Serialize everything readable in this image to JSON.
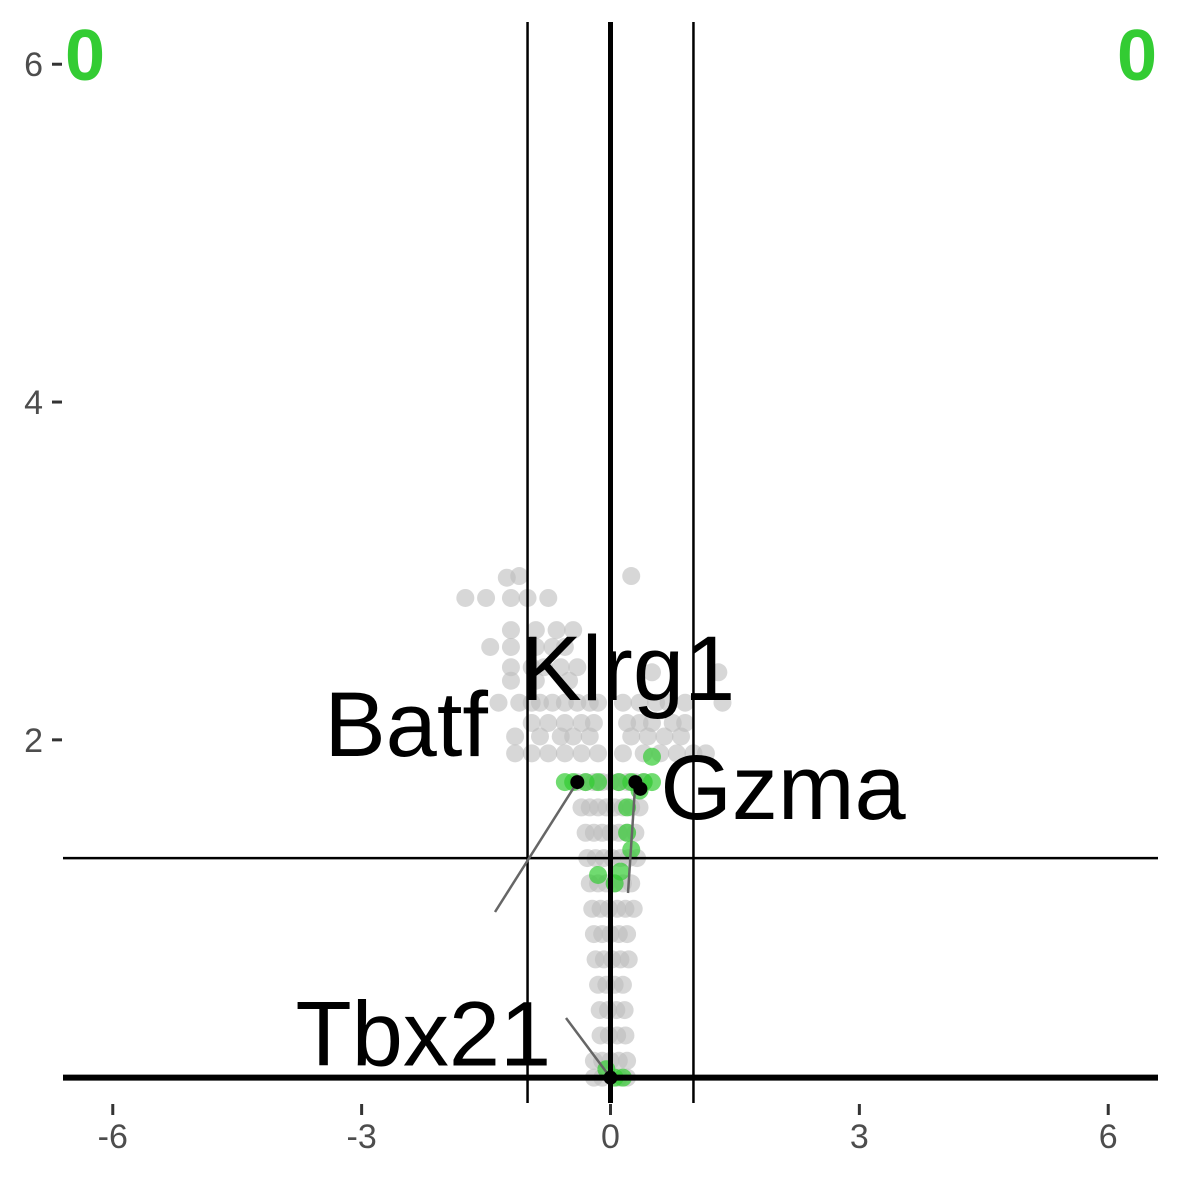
{
  "chart_data": {
    "type": "scatter",
    "title": "",
    "xlabel": "",
    "ylabel": "",
    "xlim": [
      -6.6,
      6.6
    ],
    "ylim": [
      -0.15,
      6.25
    ],
    "x_ticks": [
      -6,
      -3,
      0,
      3,
      6
    ],
    "x_tick_labels": [
      "-6",
      "-3",
      "0",
      "3",
      "6"
    ],
    "y_ticks": [
      2,
      4,
      6
    ],
    "y_tick_labels": [
      "2",
      "4",
      "6"
    ],
    "thresholds": {
      "x": [
        -1,
        1
      ],
      "y": 1.3,
      "x_zero": 0,
      "y_zero": 0
    },
    "grid": false,
    "colors": {
      "background_points": "#bdbdbd",
      "highlight_points": "#33cc33",
      "labeled_points": "#000000",
      "count_labels": "#33cc33",
      "axis_text": "#4d4d4d"
    },
    "corner_counts": {
      "top_left": "0",
      "top_right": "0"
    },
    "background_points": [
      [
        -1.75,
        2.84
      ],
      [
        -1.5,
        2.84
      ],
      [
        -1.2,
        2.84
      ],
      [
        -1.0,
        2.84
      ],
      [
        -0.75,
        2.84
      ],
      [
        -1.25,
        2.96
      ],
      [
        -1.1,
        2.97
      ],
      [
        0.25,
        2.97
      ],
      [
        -1.45,
        2.55
      ],
      [
        -1.2,
        2.55
      ],
      [
        -0.9,
        2.55
      ],
      [
        -0.7,
        2.55
      ],
      [
        -0.55,
        2.55
      ],
      [
        -1.2,
        2.65
      ],
      [
        -0.9,
        2.65
      ],
      [
        -0.65,
        2.65
      ],
      [
        -0.45,
        2.65
      ],
      [
        -1.2,
        2.43
      ],
      [
        -0.95,
        2.43
      ],
      [
        -0.8,
        2.43
      ],
      [
        -0.6,
        2.43
      ],
      [
        -0.4,
        2.43
      ],
      [
        -1.2,
        2.35
      ],
      [
        -0.9,
        2.35
      ],
      [
        -0.5,
        2.35
      ],
      [
        0.5,
        2.4
      ],
      [
        1.3,
        2.4
      ],
      [
        -1.35,
        2.22
      ],
      [
        -1.1,
        2.22
      ],
      [
        -0.95,
        2.22
      ],
      [
        -0.85,
        2.22
      ],
      [
        -0.7,
        2.22
      ],
      [
        -0.55,
        2.22
      ],
      [
        -0.4,
        2.22
      ],
      [
        -0.25,
        2.22
      ],
      [
        -0.15,
        2.22
      ],
      [
        0.15,
        2.22
      ],
      [
        0.35,
        2.22
      ],
      [
        0.55,
        2.22
      ],
      [
        0.7,
        2.22
      ],
      [
        0.9,
        2.22
      ],
      [
        1.35,
        2.22
      ],
      [
        -0.95,
        2.1
      ],
      [
        -0.75,
        2.1
      ],
      [
        -0.55,
        2.1
      ],
      [
        -0.35,
        2.1
      ],
      [
        -0.2,
        2.1
      ],
      [
        0.2,
        2.1
      ],
      [
        0.35,
        2.1
      ],
      [
        0.5,
        2.1
      ],
      [
        0.75,
        2.1
      ],
      [
        0.9,
        2.1
      ],
      [
        -1.15,
        2.02
      ],
      [
        -0.85,
        2.02
      ],
      [
        -0.6,
        2.02
      ],
      [
        -0.45,
        2.02
      ],
      [
        -0.25,
        2.02
      ],
      [
        0.25,
        2.02
      ],
      [
        0.45,
        2.02
      ],
      [
        0.65,
        2.02
      ],
      [
        0.85,
        2.02
      ],
      [
        -1.15,
        1.92
      ],
      [
        -0.95,
        1.92
      ],
      [
        -0.75,
        1.92
      ],
      [
        -0.55,
        1.92
      ],
      [
        -0.35,
        1.92
      ],
      [
        -0.15,
        1.92
      ],
      [
        0.15,
        1.92
      ],
      [
        0.4,
        1.92
      ],
      [
        0.6,
        1.92
      ],
      [
        0.8,
        1.92
      ],
      [
        1.0,
        1.92
      ],
      [
        1.15,
        1.92
      ],
      [
        -0.4,
        1.75
      ],
      [
        -0.3,
        1.75
      ],
      [
        -0.2,
        1.75
      ],
      [
        -0.1,
        1.75
      ],
      [
        0.0,
        1.75
      ],
      [
        0.1,
        1.75
      ],
      [
        0.2,
        1.75
      ],
      [
        0.3,
        1.75
      ],
      [
        0.4,
        1.75
      ],
      [
        -0.35,
        1.6
      ],
      [
        -0.25,
        1.6
      ],
      [
        -0.15,
        1.6
      ],
      [
        -0.05,
        1.6
      ],
      [
        0.05,
        1.6
      ],
      [
        0.15,
        1.6
      ],
      [
        0.25,
        1.6
      ],
      [
        0.35,
        1.6
      ],
      [
        -0.3,
        1.45
      ],
      [
        -0.2,
        1.45
      ],
      [
        -0.1,
        1.45
      ],
      [
        0.0,
        1.45
      ],
      [
        0.1,
        1.45
      ],
      [
        0.2,
        1.45
      ],
      [
        0.3,
        1.45
      ],
      [
        -0.28,
        1.3
      ],
      [
        -0.18,
        1.3
      ],
      [
        -0.08,
        1.3
      ],
      [
        0.02,
        1.3
      ],
      [
        0.12,
        1.3
      ],
      [
        0.22,
        1.3
      ],
      [
        0.32,
        1.3
      ],
      [
        -0.25,
        1.15
      ],
      [
        -0.15,
        1.15
      ],
      [
        -0.05,
        1.15
      ],
      [
        0.05,
        1.15
      ],
      [
        0.15,
        1.15
      ],
      [
        0.25,
        1.15
      ],
      [
        -0.22,
        1.0
      ],
      [
        -0.12,
        1.0
      ],
      [
        -0.02,
        1.0
      ],
      [
        0.08,
        1.0
      ],
      [
        0.18,
        1.0
      ],
      [
        0.28,
        1.0
      ],
      [
        -0.2,
        0.85
      ],
      [
        -0.1,
        0.85
      ],
      [
        0.0,
        0.85
      ],
      [
        0.1,
        0.85
      ],
      [
        0.2,
        0.85
      ],
      [
        -0.18,
        0.7
      ],
      [
        -0.08,
        0.7
      ],
      [
        0.02,
        0.7
      ],
      [
        0.12,
        0.7
      ],
      [
        0.22,
        0.7
      ],
      [
        -0.15,
        0.55
      ],
      [
        -0.05,
        0.55
      ],
      [
        0.05,
        0.55
      ],
      [
        0.15,
        0.55
      ],
      [
        -0.13,
        0.4
      ],
      [
        -0.03,
        0.4
      ],
      [
        0.07,
        0.4
      ],
      [
        0.17,
        0.4
      ],
      [
        -0.12,
        0.25
      ],
      [
        -0.02,
        0.25
      ],
      [
        0.08,
        0.25
      ],
      [
        0.18,
        0.25
      ],
      [
        -0.2,
        0.1
      ],
      [
        -0.1,
        0.1
      ],
      [
        0.0,
        0.1
      ],
      [
        0.1,
        0.1
      ],
      [
        0.2,
        0.1
      ],
      [
        -0.2,
        0.0
      ],
      [
        -0.1,
        0.0
      ],
      [
        0.1,
        0.0
      ],
      [
        0.2,
        0.0
      ]
    ],
    "highlight_points": [
      [
        -0.55,
        1.75
      ],
      [
        -0.45,
        1.75
      ],
      [
        -0.3,
        1.75
      ],
      [
        -0.15,
        1.75
      ],
      [
        0.1,
        1.75
      ],
      [
        0.25,
        1.75
      ],
      [
        0.4,
        1.75
      ],
      [
        0.5,
        1.75
      ],
      [
        0.35,
        1.7
      ],
      [
        0.5,
        1.9
      ],
      [
        0.2,
        1.6
      ],
      [
        0.2,
        1.45
      ],
      [
        0.25,
        1.35
      ],
      [
        0.12,
        1.22
      ],
      [
        0.05,
        1.15
      ],
      [
        -0.15,
        1.2
      ],
      [
        -0.05,
        0.05
      ],
      [
        0.05,
        0.0
      ],
      [
        0.15,
        0.0
      ]
    ],
    "labeled_points": [
      {
        "label": "Batf",
        "x": -0.4,
        "y": 1.75
      },
      {
        "label": "Klrg1",
        "x": 0.3,
        "y": 1.75
      },
      {
        "label": "Gzma",
        "x": 0.36,
        "y": 1.71
      },
      {
        "label": "Tbx21",
        "x": 0.0,
        "y": 0.0
      }
    ]
  }
}
